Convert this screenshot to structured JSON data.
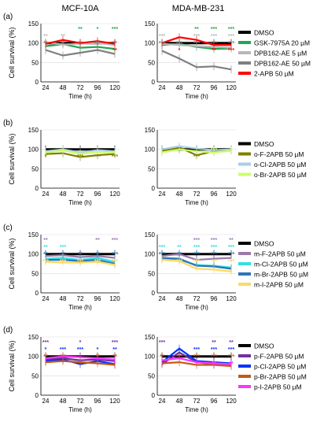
{
  "header": {
    "left": "MCF-10A",
    "right": "MDA-MB-231"
  },
  "common": {
    "ylabel": "Cell survival (%)",
    "xlabel": "Time (h)",
    "x_ticks": [
      "24",
      "48",
      "72",
      "96",
      "120"
    ],
    "y_ticks": [
      "0",
      "50",
      "100",
      "150"
    ]
  },
  "chart_data": [
    {
      "panel": "(a)",
      "type": "line",
      "x": [
        24,
        48,
        72,
        96,
        120
      ],
      "ylim": [
        0,
        150
      ],
      "legend": [
        {
          "name": "DMSO",
          "color": "#000000"
        },
        {
          "name": "GSK-7975A 20 µM",
          "color": "#1fa84f"
        },
        {
          "name": "DPB162-AE 5 µM",
          "color": "#b8b8b8"
        },
        {
          "name": "DPB162-AE 50 µM",
          "color": "#7f7f7f"
        },
        {
          "name": "2-APB 50 µM",
          "color": "#ff0000"
        }
      ],
      "cells": [
        {
          "name": "MCF-10A",
          "series": [
            {
              "color": "#000000",
              "values": [
                100,
                100,
                100,
                100,
                100
              ]
            },
            {
              "color": "#1fa84f",
              "values": [
                92,
                97,
                88,
                90,
                85
              ]
            },
            {
              "color": "#b8b8b8",
              "values": [
                102,
                96,
                98,
                100,
                95
              ]
            },
            {
              "color": "#7f7f7f",
              "values": [
                82,
                68,
                75,
                82,
                72
              ]
            },
            {
              "color": "#ff0000",
              "values": [
                98,
                108,
                100,
                105,
                98
              ]
            }
          ],
          "stars": [
            {
              "row": 3,
              "color": "#1fa84f",
              "labels": [
                "",
                "",
                "**",
                "*",
                "***"
              ]
            },
            {
              "row": 2,
              "color": "#b8b8b8",
              "labels": [
                "**",
                "**",
                "",
                "",
                ""
              ]
            },
            {
              "row": 1,
              "color": "#7f7f7f",
              "labels": [
                "**",
                "**",
                "**",
                "**",
                "**"
              ]
            },
            {
              "row": 0,
              "color": "#ff0000",
              "labels": [
                "",
                "",
                "",
                "",
                "**"
              ]
            }
          ]
        },
        {
          "name": "MDA-MB-231",
          "series": [
            {
              "color": "#000000",
              "values": [
                100,
                100,
                100,
                100,
                100
              ]
            },
            {
              "color": "#1fa84f",
              "values": [
                95,
                98,
                90,
                85,
                86
              ]
            },
            {
              "color": "#b8b8b8",
              "values": [
                98,
                95,
                92,
                90,
                88
              ]
            },
            {
              "color": "#7f7f7f",
              "values": [
                80,
                60,
                38,
                40,
                32
              ]
            },
            {
              "color": "#ff0000",
              "values": [
                100,
                115,
                108,
                95,
                95
              ]
            }
          ],
          "stars": [
            {
              "row": 3,
              "color": "#1fa84f",
              "labels": [
                "",
                "",
                "**",
                "***",
                "***"
              ]
            },
            {
              "row": 2,
              "color": "#b8b8b8",
              "labels": [
                "***",
                "",
                "***",
                "***",
                "***"
              ]
            },
            {
              "row": 1,
              "color": "#7f7f7f",
              "labels": [
                "***",
                "***",
                "***",
                "***",
                "***"
              ]
            },
            {
              "row": 0,
              "color": "#ff0000",
              "labels": [
                "",
                "*",
                "",
                "**",
                "***"
              ]
            }
          ]
        }
      ]
    },
    {
      "panel": "(b)",
      "type": "line",
      "x": [
        24,
        48,
        72,
        96,
        120
      ],
      "ylim": [
        0,
        150
      ],
      "legend": [
        {
          "name": "DMSO",
          "color": "#000000"
        },
        {
          "name": "o-F-2APB 50 µM",
          "color": "#808000"
        },
        {
          "name": "o-Cl-2APB 50 µM",
          "color": "#a9cfe8"
        },
        {
          "name": "o-Br-2APB 50 µM",
          "color": "#ccff66"
        }
      ],
      "cells": [
        {
          "name": "MCF-10A",
          "series": [
            {
              "color": "#000000",
              "values": [
                100,
                100,
                100,
                100,
                100
              ]
            },
            {
              "color": "#808000",
              "values": [
                88,
                90,
                80,
                85,
                88
              ]
            },
            {
              "color": "#a9cfe8",
              "values": [
                95,
                100,
                92,
                98,
                95
              ]
            },
            {
              "color": "#ccff66",
              "values": [
                92,
                97,
                88,
                93,
                92
              ]
            }
          ],
          "stars": [
            {
              "row": 0,
              "color": "#808000",
              "labels": [
                "*",
                "",
                "***",
                "***",
                "***"
              ]
            }
          ]
        },
        {
          "name": "MDA-MB-231",
          "series": [
            {
              "color": "#000000",
              "values": [
                100,
                100,
                100,
                100,
                100
              ]
            },
            {
              "color": "#808000",
              "values": [
                95,
                105,
                85,
                95,
                98
              ]
            },
            {
              "color": "#a9cfe8",
              "values": [
                100,
                108,
                102,
                98,
                100
              ]
            },
            {
              "color": "#ccff66",
              "values": [
                92,
                100,
                95,
                92,
                96
              ]
            }
          ],
          "stars": [
            {
              "row": 0,
              "color": "#808000",
              "labels": [
                "",
                "",
                "***",
                "",
                ""
              ]
            },
            {
              "row": 1,
              "color": "#ccff66",
              "labels": [
                "",
                "",
                "",
                "***",
                "*"
              ]
            }
          ]
        }
      ]
    },
    {
      "panel": "(c)",
      "type": "line",
      "x": [
        24,
        48,
        72,
        96,
        120
      ],
      "ylim": [
        0,
        150
      ],
      "legend": [
        {
          "name": "DMSO",
          "color": "#000000"
        },
        {
          "name": "m-F-2APB 50 µM",
          "color": "#9b7aa8"
        },
        {
          "name": "m-Cl-2APB 50 µM",
          "color": "#33e0e0"
        },
        {
          "name": "m-Br-2APB 50 µM",
          "color": "#2e75b6"
        },
        {
          "name": "m-I-2APB 50 µM",
          "color": "#ffd966"
        }
      ],
      "cells": [
        {
          "name": "MCF-10A",
          "series": [
            {
              "color": "#000000",
              "values": [
                100,
                100,
                100,
                100,
                100
              ]
            },
            {
              "color": "#9b7aa8",
              "values": [
                95,
                97,
                92,
                95,
                90
              ]
            },
            {
              "color": "#33e0e0",
              "values": [
                88,
                90,
                85,
                90,
                80
              ]
            },
            {
              "color": "#2e75b6",
              "values": [
                85,
                85,
                82,
                85,
                75
              ]
            },
            {
              "color": "#ffd966",
              "values": [
                80,
                78,
                78,
                80,
                72
              ]
            }
          ],
          "stars": [
            {
              "row": 3,
              "color": "#9b7aa8",
              "labels": [
                "**",
                "",
                "",
                "**",
                "***"
              ]
            },
            {
              "row": 2,
              "color": "#33e0e0",
              "labels": [
                "**",
                "***",
                "",
                "",
                ""
              ]
            },
            {
              "row": 1,
              "color": "#2e75b6",
              "labels": [
                "**",
                "**",
                "**",
                "**",
                "***"
              ]
            },
            {
              "row": 0,
              "color": "#ffd966",
              "labels": [
                "***",
                "***",
                "***",
                "***",
                "***"
              ]
            }
          ]
        },
        {
          "name": "MDA-MB-231",
          "series": [
            {
              "color": "#000000",
              "values": [
                100,
                100,
                100,
                100,
                100
              ]
            },
            {
              "color": "#9b7aa8",
              "values": [
                95,
                100,
                85,
                88,
                90
              ]
            },
            {
              "color": "#33e0e0",
              "values": [
                88,
                85,
                72,
                70,
                65
              ]
            },
            {
              "color": "#2e75b6",
              "values": [
                90,
                88,
                70,
                68,
                62
              ]
            },
            {
              "color": "#ffd966",
              "values": [
                85,
                82,
                62,
                60,
                55
              ]
            }
          ],
          "stars": [
            {
              "row": 3,
              "color": "#9b7aa8",
              "labels": [
                "",
                "",
                "***",
                "***",
                "**"
              ]
            },
            {
              "row": 2,
              "color": "#33e0e0",
              "labels": [
                "***",
                "**",
                "***",
                "***",
                "***"
              ]
            },
            {
              "row": 1,
              "color": "#2e75b6",
              "labels": [
                "***",
                "**",
                "***",
                "***",
                "***"
              ]
            },
            {
              "row": 0,
              "color": "#ffd966",
              "labels": [
                "",
                "***",
                "***",
                "***",
                "***"
              ]
            }
          ]
        }
      ]
    },
    {
      "panel": "(d)",
      "type": "line",
      "x": [
        24,
        48,
        72,
        96,
        120
      ],
      "ylim": [
        0,
        150
      ],
      "legend": [
        {
          "name": "DMSO",
          "color": "#000000"
        },
        {
          "name": "p-F-2APB 50 µM",
          "color": "#7030a0"
        },
        {
          "name": "p-Cl-2APB 50 µM",
          "color": "#0033ff"
        },
        {
          "name": "p-Br-2APB 50 µM",
          "color": "#c55a11"
        },
        {
          "name": "p-I-2APB 50 µM",
          "color": "#ff33ff"
        }
      ],
      "cells": [
        {
          "name": "MCF-10A",
          "series": [
            {
              "color": "#000000",
              "values": [
                100,
                100,
                100,
                100,
                100
              ]
            },
            {
              "color": "#7030a0",
              "values": [
                92,
                95,
                90,
                92,
                88
              ]
            },
            {
              "color": "#0033ff",
              "values": [
                88,
                92,
                80,
                88,
                80
              ]
            },
            {
              "color": "#c55a11",
              "values": [
                85,
                88,
                85,
                82,
                78
              ]
            },
            {
              "color": "#ff33ff",
              "values": [
                95,
                100,
                98,
                95,
                92
              ]
            }
          ],
          "stars": [
            {
              "row": 3,
              "color": "#7030a0",
              "labels": [
                "***",
                "",
                "*",
                "",
                "***"
              ]
            },
            {
              "row": 2,
              "color": "#0033ff",
              "labels": [
                "*",
                "***",
                "***",
                "*",
                "**"
              ]
            },
            {
              "row": 1,
              "color": "#c55a11",
              "labels": [
                "**",
                "***",
                "",
                "**",
                "**"
              ]
            },
            {
              "row": 0,
              "color": "#ff33ff",
              "labels": [
                "",
                "",
                "",
                "",
                "*"
              ]
            }
          ]
        },
        {
          "name": "MDA-MB-231",
          "series": [
            {
              "color": "#000000",
              "values": [
                100,
                100,
                100,
                100,
                100
              ]
            },
            {
              "color": "#7030a0",
              "values": [
                80,
                110,
                85,
                80,
                78
              ]
            },
            {
              "color": "#0033ff",
              "values": [
                85,
                120,
                88,
                85,
                82
              ]
            },
            {
              "color": "#c55a11",
              "values": [
                82,
                85,
                78,
                78,
                75
              ]
            },
            {
              "color": "#ff33ff",
              "values": [
                90,
                95,
                85,
                82,
                80
              ]
            }
          ],
          "stars": [
            {
              "row": 3,
              "color": "#7030a0",
              "labels": [
                "***",
                "",
                "",
                "**",
                "**"
              ]
            },
            {
              "row": 2,
              "color": "#0033ff",
              "labels": [
                "",
                "",
                "***",
                "***",
                "***"
              ]
            },
            {
              "row": 1,
              "color": "#c55a11",
              "labels": [
                "**",
                "***",
                "***",
                "***",
                "***"
              ]
            },
            {
              "row": 0,
              "color": "#ff33ff",
              "labels": [
                "",
                "",
                "*",
                "**",
                "**"
              ]
            }
          ]
        }
      ]
    }
  ]
}
